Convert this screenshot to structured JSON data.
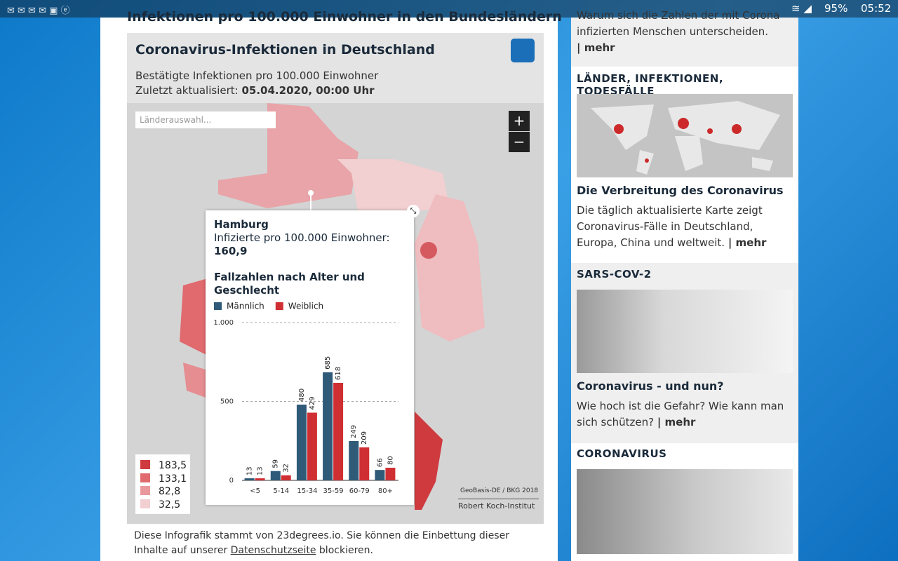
{
  "status": {
    "battery": "95%",
    "time": "05:52"
  },
  "article": {
    "heading": "Infektionen pro 100.000 Einwohner in den Bundesländern"
  },
  "infographic": {
    "title": "Coronavirus-Infektionen in Deutschland",
    "subtitle": "Bestätigte Infektionen pro 100.000 Einwohner",
    "updated_label": "Zuletzt aktualisiert:",
    "updated_value": "05.04.2020, 00:00 Uhr",
    "search_placeholder": "Länderauswahl...",
    "zoom_in": "+",
    "zoom_out": "−",
    "legend": [
      "183,5",
      "133,1",
      "82,8",
      "32,5"
    ],
    "attribution": "GeoBasis-DE / BKG 2018",
    "source": "Robert Koch-Institut",
    "popup": {
      "region": "Hamburg",
      "metric": "Infizierte pro 100.000 Einwohner:",
      "metric_value": "160,9",
      "chart_title": "Fallzahlen nach Alter und Geschlecht"
    }
  },
  "caption": {
    "before": "Diese Infografik stammt von 23degrees.io. Sie können die Einbettung dieser Inhalte auf unserer",
    "link": "Datenschutzseite",
    "after": "blockieren."
  },
  "sidebar": {
    "top_text": "Warum sich die Zahlen der mit Corona infizierten Menschen unterscheiden.",
    "top_more": "| mehr",
    "items": [
      {
        "section": "LÄNDER, INFEKTIONEN, TODESFÄLLE",
        "title": "Die Verbreitung des Coronavirus",
        "text": "Die täglich aktualisierte Karte zeigt Coronavirus-Fälle in Deutschland, Europa, China und weltweit.",
        "more": "| mehr"
      },
      {
        "section": "SARS-COV-2",
        "title": "Coronavirus - und nun?",
        "text": "Wie hoch ist die Gefahr? Wie kann man sich schützen?",
        "more": "| mehr"
      },
      {
        "section": "CORONAVIRUS"
      }
    ]
  },
  "chart_data": {
    "type": "bar",
    "categories": [
      "<5",
      "5-14",
      "15-34",
      "35-59",
      "60-79",
      "80+"
    ],
    "series": [
      {
        "name": "Männlich",
        "color": "#2f5a78",
        "values": [
          13,
          59,
          480,
          685,
          249,
          66
        ]
      },
      {
        "name": "Weiblich",
        "color": "#cf2f33",
        "values": [
          13,
          32,
          429,
          618,
          209,
          80
        ]
      }
    ],
    "ylim": [
      0,
      1000
    ],
    "yticks": [
      0,
      500,
      {
        "value": 1000,
        "label": "1.000"
      }
    ],
    "grid": true
  }
}
